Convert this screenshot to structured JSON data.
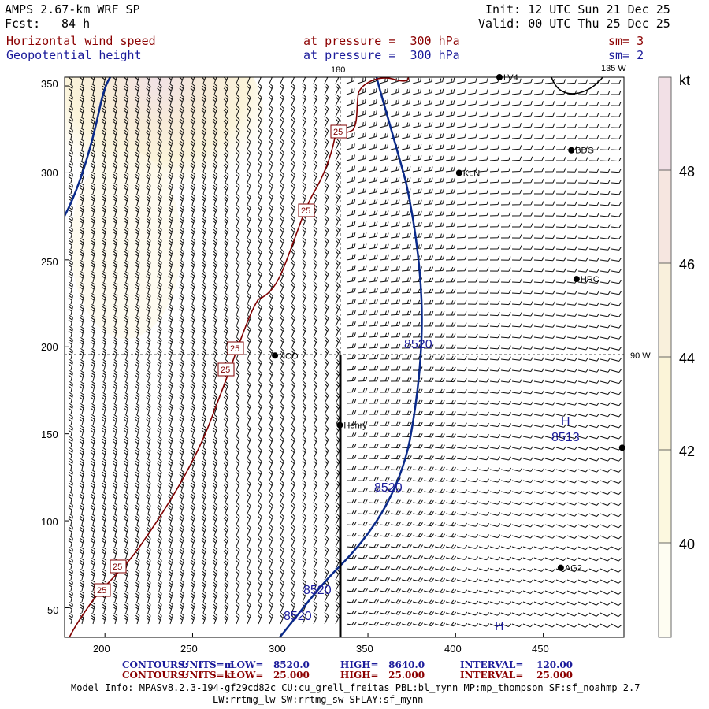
{
  "header": {
    "model": "AMPS 2.67-km WRF SP",
    "fcst_label": "Fcst:",
    "fcst_value": "84 h",
    "init": "Init: 12 UTC Sun 21 Dec 25",
    "valid": "Valid: 00 UTC Thu 25 Dec 25",
    "field1_name": "Horizontal wind speed",
    "field1_level": "at pressure =  300 hPa",
    "field1_sm": "sm= 3",
    "field2_name": "Geopotential height",
    "field2_level": "at pressure =  300 hPa",
    "field2_sm": "sm= 2"
  },
  "map": {
    "lon_labels": {
      "top": "180",
      "right_top": "135 W",
      "right_mid": "90 W"
    },
    "x_ticks": [
      "200",
      "250",
      "300",
      "350",
      "400",
      "450"
    ],
    "y_ticks": [
      "350",
      "300",
      "250",
      "200",
      "150",
      "100",
      "50"
    ],
    "stations": [
      {
        "name": "LV4",
        "x": 425,
        "y": 355
      },
      {
        "name": "BDG",
        "x": 466,
        "y": 313
      },
      {
        "name": "KLN",
        "x": 402,
        "y": 300
      },
      {
        "name": "HRC",
        "x": 469,
        "y": 239
      },
      {
        "name": "NCO",
        "x": 297,
        "y": 195
      },
      {
        "name": "Henry",
        "x": 334,
        "y": 155
      },
      {
        "name": "",
        "x": 495,
        "y": 142
      },
      {
        "name": "AG2",
        "x": 460,
        "y": 73
      }
    ],
    "height_contour_labels": [
      "8520",
      "8520",
      "8520",
      "8520"
    ],
    "high_label": "H",
    "high_value": "8513",
    "high_label_2": "H",
    "speed_contour_label": "25",
    "speed_contour_label_count": 6
  },
  "colorbar": {
    "unit": "kt",
    "levels": [
      "48",
      "46",
      "44",
      "42",
      "40"
    ],
    "colors": [
      "#f2e0e6",
      "#f6e6e0",
      "#f9f0dc",
      "#fbf4d8",
      "#fcf8df",
      "#fefdf2"
    ]
  },
  "footer": {
    "line1": {
      "label": "CONTOURS:",
      "units": "UNITS=m",
      "low": "LOW=   8520.0",
      "high": "HIGH=   8640.0",
      "interval": "INTERVAL=    120.00"
    },
    "line2": {
      "label": "CONTOURS:",
      "units": "UNITS=kt",
      "low": "LOW=   25.000",
      "high": "HIGH=   25.000",
      "interval": "INTERVAL=    25.000"
    },
    "model_info_1": "Model Info: MPASv8.2.3-194-gf29cd82c CU:cu_grell_freitas PBL:bl_mynn MP:mp_thompson SF:sf_noahmp 2.7",
    "model_info_2": "LW:rrtmg_lw SW:rrtmg_sw SFLAY:sf_mynn"
  }
}
